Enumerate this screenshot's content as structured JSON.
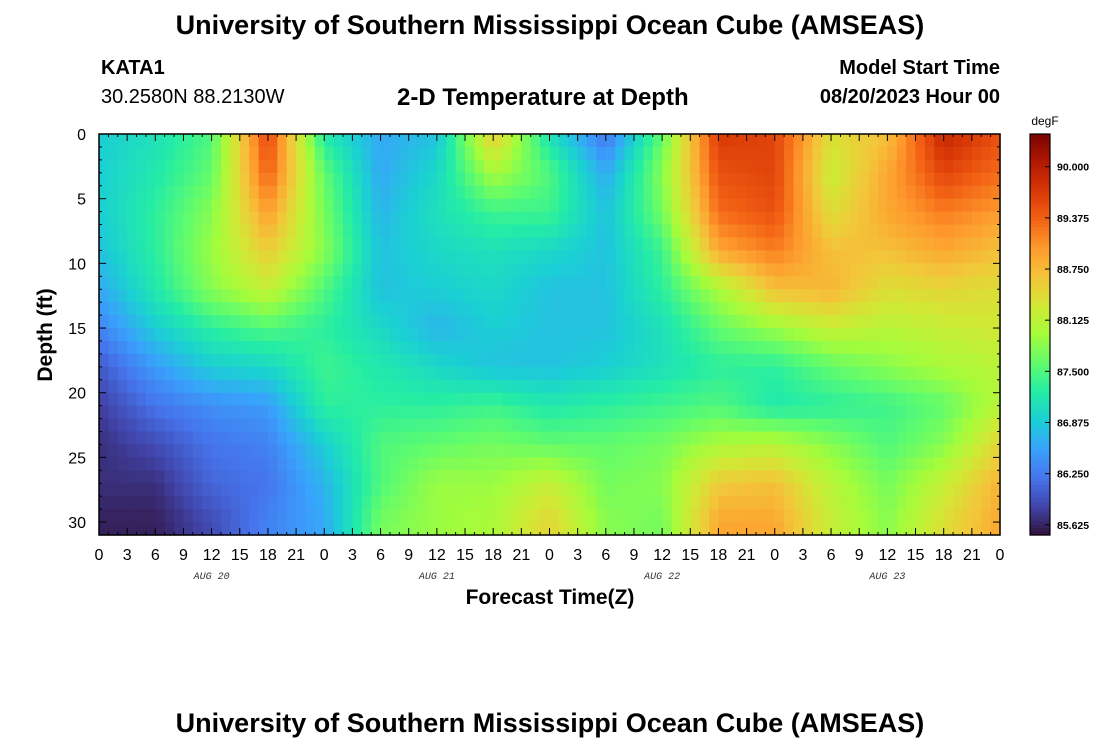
{
  "header": {
    "title": "University of Southern Mississippi Ocean Cube (AMSEAS)",
    "station_name": "KATA1",
    "station_coords": "30.2580N  88.2130W",
    "subtitle": "2-D Temperature at Depth",
    "model_start_label": "Model Start Time",
    "model_start_value": "08/20/2023 Hour 00"
  },
  "footer": {
    "title": "University of Southern Mississippi Ocean Cube (AMSEAS)"
  },
  "chart_data": {
    "type": "heatmap",
    "title": "2-D Temperature at Depth",
    "xlabel": "Forecast Time(Z)",
    "ylabel": "Depth (ft)",
    "x_tick_labels": [
      "0",
      "3",
      "6",
      "9",
      "12",
      "15",
      "18",
      "21",
      "0",
      "3",
      "6",
      "9",
      "12",
      "15",
      "18",
      "21",
      "0",
      "3",
      "6",
      "9",
      "12",
      "15",
      "18",
      "21",
      "0",
      "3",
      "6",
      "9",
      "12",
      "15",
      "18",
      "21",
      "0"
    ],
    "day_labels": [
      "AUG 20",
      "AUG 21",
      "AUG 22",
      "AUG 23"
    ],
    "y_ticks": [
      0,
      5,
      10,
      15,
      20,
      25,
      30
    ],
    "ylim": [
      0,
      31
    ],
    "xlim_hours": [
      0,
      96
    ],
    "colorbar": {
      "unit": "degF",
      "min": 85.5,
      "max": 90.4,
      "tick_values": [
        85.625,
        86.25,
        86.875,
        87.5,
        88.125,
        88.75,
        89.375,
        90.0
      ],
      "tick_labels": [
        "85.625",
        "86.250",
        "86.875",
        "87.500",
        "88.125",
        "88.750",
        "89.375",
        "90.000"
      ],
      "colors": [
        "#30123b",
        "#4145ab",
        "#4675ed",
        "#39a2fc",
        "#1bcfd4",
        "#24eca6",
        "#61fc6c",
        "#a4fc3b",
        "#d1e834",
        "#f3c63a",
        "#fe9b2d",
        "#f36315",
        "#d93806",
        "#b11901",
        "#7a0402"
      ]
    },
    "depths_ft": [
      0,
      3,
      6,
      9,
      12,
      15,
      18,
      21,
      24,
      27,
      30
    ],
    "times_hours": [
      0,
      6,
      12,
      18,
      24,
      30,
      36,
      42,
      48,
      54,
      60,
      66,
      72,
      78,
      84,
      90,
      96
    ],
    "temperature_degF": [
      [
        86.9,
        87.1,
        87.5,
        89.6,
        87.2,
        86.6,
        86.8,
        88.6,
        87.1,
        86.2,
        87.6,
        89.7,
        89.6,
        88.4,
        88.7,
        89.9,
        89.5
      ],
      [
        86.9,
        87.2,
        87.6,
        89.4,
        87.6,
        86.6,
        87.0,
        88.0,
        87.5,
        86.6,
        87.8,
        89.5,
        89.6,
        88.2,
        88.9,
        89.6,
        89.3
      ],
      [
        86.9,
        87.3,
        87.8,
        89.0,
        87.7,
        86.7,
        87.1,
        87.4,
        87.4,
        86.8,
        87.7,
        89.3,
        89.5,
        88.4,
        88.9,
        89.2,
        89.0
      ],
      [
        86.8,
        87.3,
        87.9,
        88.6,
        87.8,
        86.8,
        87.0,
        87.1,
        87.0,
        86.8,
        87.4,
        88.9,
        89.2,
        88.7,
        88.7,
        88.9,
        88.7
      ],
      [
        86.6,
        87.2,
        87.8,
        88.2,
        87.5,
        86.8,
        86.9,
        87.0,
        86.8,
        86.8,
        87.3,
        88.0,
        88.7,
        88.8,
        88.4,
        88.5,
        88.4
      ],
      [
        86.3,
        86.9,
        87.3,
        87.5,
        87.3,
        87.0,
        86.7,
        86.9,
        86.8,
        86.8,
        87.1,
        87.6,
        87.9,
        88.2,
        88.1,
        88.2,
        88.3
      ],
      [
        86.0,
        86.5,
        86.9,
        87.0,
        87.4,
        87.2,
        87.0,
        86.8,
        86.8,
        86.9,
        87.1,
        87.3,
        87.3,
        87.6,
        87.8,
        88.0,
        88.1
      ],
      [
        85.8,
        86.2,
        86.4,
        86.5,
        87.3,
        87.3,
        87.3,
        87.4,
        87.2,
        87.3,
        87.4,
        87.5,
        87.2,
        87.3,
        87.4,
        87.6,
        88.1
      ],
      [
        85.7,
        85.9,
        86.2,
        86.3,
        86.9,
        87.5,
        87.6,
        87.7,
        87.6,
        87.6,
        87.7,
        88.0,
        88.1,
        87.8,
        87.5,
        87.8,
        88.5
      ],
      [
        85.7,
        85.7,
        86.1,
        86.2,
        86.7,
        87.5,
        87.9,
        87.9,
        88.2,
        87.7,
        87.8,
        88.6,
        88.7,
        88.1,
        87.7,
        88.2,
        88.8
      ],
      [
        85.6,
        85.6,
        85.9,
        86.3,
        86.6,
        87.7,
        87.9,
        88.0,
        88.5,
        87.8,
        87.7,
        88.9,
        88.9,
        88.2,
        87.8,
        88.4,
        88.9
      ]
    ]
  }
}
